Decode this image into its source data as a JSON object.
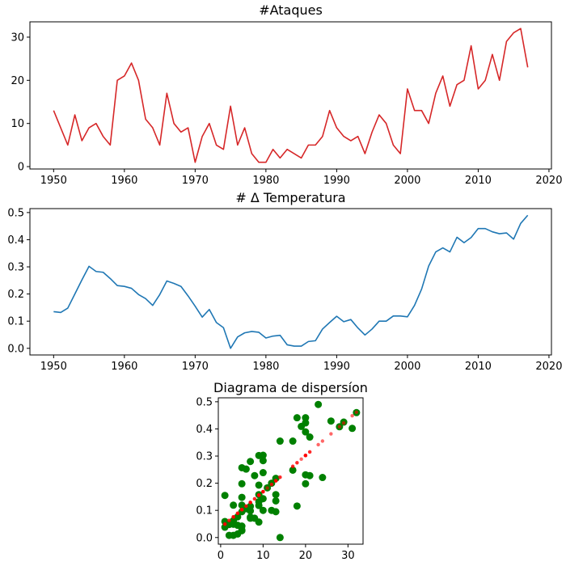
{
  "chart_data": [
    {
      "type": "line",
      "title": "#Ataques",
      "xlabel": "",
      "ylabel": "",
      "xlim": [
        1946.65,
        2020.35
      ],
      "ylim": [
        -0.55,
        33.55
      ],
      "xticks": [
        1950,
        1960,
        1970,
        1980,
        1990,
        2000,
        2010,
        2020
      ],
      "yticks": [
        0,
        10,
        20,
        30
      ],
      "grid": false,
      "series": [
        {
          "color": "#d62728",
          "x": [
            1950,
            1951,
            1952,
            1953,
            1954,
            1955,
            1956,
            1957,
            1958,
            1959,
            1960,
            1961,
            1962,
            1963,
            1964,
            1965,
            1966,
            1967,
            1968,
            1969,
            1970,
            1971,
            1972,
            1973,
            1974,
            1975,
            1976,
            1977,
            1978,
            1979,
            1980,
            1981,
            1982,
            1983,
            1984,
            1985,
            1986,
            1987,
            1988,
            1989,
            1990,
            1991,
            1992,
            1993,
            1994,
            1995,
            1996,
            1997,
            1998,
            1999,
            2000,
            2001,
            2002,
            2003,
            2004,
            2005,
            2006,
            2007,
            2008,
            2009,
            2010,
            2011,
            2012,
            2013,
            2014,
            2015,
            2016,
            2017
          ],
          "values": [
            13,
            9,
            5,
            12,
            6,
            9,
            10,
            7,
            5,
            20,
            21,
            24,
            20,
            11,
            9,
            5,
            17,
            10,
            8,
            9,
            1,
            7,
            10,
            5,
            4,
            14,
            5,
            9,
            3,
            1,
            1,
            4,
            2,
            4,
            3,
            2,
            5,
            5,
            7,
            13,
            9,
            7,
            6,
            7,
            3,
            8,
            12,
            10,
            5,
            3,
            18,
            13,
            13,
            10,
            17,
            21,
            14,
            19,
            20,
            28,
            18,
            20,
            26,
            20,
            29,
            31,
            32,
            23
          ]
        }
      ]
    },
    {
      "type": "line",
      "title": "# Δ Temperatura",
      "xlabel": "",
      "ylabel": "",
      "xlim": [
        1946.65,
        2020.35
      ],
      "ylim": [
        -0.0245,
        0.5145
      ],
      "xticks": [
        1950,
        1960,
        1970,
        1980,
        1990,
        2000,
        2010,
        2020
      ],
      "yticks": [
        0.0,
        0.1,
        0.2,
        0.3,
        0.4,
        0.5
      ],
      "ytick_labels": [
        "0.0",
        "0.1",
        "0.2",
        "0.3",
        "0.4",
        "0.5"
      ],
      "grid": false,
      "series": [
        {
          "color": "#1f77b4",
          "x": [
            1950,
            1951,
            1952,
            1953,
            1954,
            1955,
            1956,
            1957,
            1958,
            1959,
            1960,
            1961,
            1962,
            1963,
            1964,
            1965,
            1966,
            1967,
            1968,
            1969,
            1970,
            1971,
            1972,
            1973,
            1974,
            1975,
            1976,
            1977,
            1978,
            1979,
            1980,
            1981,
            1982,
            1983,
            1984,
            1985,
            1986,
            1987,
            1988,
            1989,
            1990,
            1991,
            1992,
            1993,
            1994,
            1995,
            1996,
            1997,
            1998,
            1999,
            2000,
            2001,
            2002,
            2003,
            2004,
            2005,
            2006,
            2007,
            2008,
            2009,
            2010,
            2011,
            2012,
            2013,
            2014,
            2015,
            2016,
            2017
          ],
          "values": [
            0.135,
            0.132,
            0.148,
            0.2,
            0.252,
            0.302,
            0.283,
            0.28,
            0.257,
            0.231,
            0.228,
            0.221,
            0.198,
            0.183,
            0.158,
            0.198,
            0.248,
            0.239,
            0.228,
            0.193,
            0.155,
            0.115,
            0.143,
            0.095,
            0.076,
            0.0,
            0.042,
            0.057,
            0.062,
            0.059,
            0.038,
            0.045,
            0.048,
            0.013,
            0.008,
            0.008,
            0.025,
            0.028,
            0.071,
            0.095,
            0.118,
            0.098,
            0.106,
            0.075,
            0.049,
            0.071,
            0.1,
            0.1,
            0.119,
            0.119,
            0.116,
            0.158,
            0.218,
            0.303,
            0.355,
            0.37,
            0.355,
            0.409,
            0.389,
            0.408,
            0.441,
            0.441,
            0.429,
            0.422,
            0.425,
            0.402,
            0.46,
            0.49
          ]
        }
      ]
    },
    {
      "type": "scatter",
      "title": "Diagrama de dispersíon",
      "xlabel": "",
      "ylabel": "",
      "xlim": [
        -0.55,
        33.55
      ],
      "ylim": [
        -0.0245,
        0.5145
      ],
      "xticks": [
        0,
        10,
        20,
        30
      ],
      "yticks": [
        0.0,
        0.1,
        0.2,
        0.3,
        0.4,
        0.5
      ],
      "ytick_labels": [
        "0.0",
        "0.1",
        "0.2",
        "0.3",
        "0.4",
        "0.5"
      ],
      "grid": false,
      "series": [
        {
          "color": "#008000",
          "marker": "large-dot",
          "points": [
            [
              13,
              0.135
            ],
            [
              9,
              0.132
            ],
            [
              5,
              0.148
            ],
            [
              12,
              0.2
            ],
            [
              6,
              0.252
            ],
            [
              9,
              0.302
            ],
            [
              10,
              0.283
            ],
            [
              7,
              0.28
            ],
            [
              5,
              0.257
            ],
            [
              20,
              0.231
            ],
            [
              21,
              0.228
            ],
            [
              24,
              0.221
            ],
            [
              20,
              0.198
            ],
            [
              11,
              0.183
            ],
            [
              9,
              0.158
            ],
            [
              5,
              0.198
            ],
            [
              17,
              0.248
            ],
            [
              10,
              0.239
            ],
            [
              8,
              0.228
            ],
            [
              9,
              0.193
            ],
            [
              1,
              0.155
            ],
            [
              7,
              0.115
            ],
            [
              10,
              0.143
            ],
            [
              5,
              0.095
            ],
            [
              4,
              0.076
            ],
            [
              14,
              0.0
            ],
            [
              5,
              0.042
            ],
            [
              9,
              0.057
            ],
            [
              3,
              0.062
            ],
            [
              1,
              0.059
            ],
            [
              1,
              0.038
            ],
            [
              4,
              0.045
            ],
            [
              2,
              0.048
            ],
            [
              4,
              0.013
            ],
            [
              3,
              0.008
            ],
            [
              2,
              0.008
            ],
            [
              5,
              0.025
            ],
            [
              5,
              0.028
            ],
            [
              7,
              0.071
            ],
            [
              13,
              0.095
            ],
            [
              9,
              0.118
            ],
            [
              7,
              0.098
            ],
            [
              6,
              0.106
            ],
            [
              7,
              0.075
            ],
            [
              3,
              0.049
            ],
            [
              8,
              0.071
            ],
            [
              12,
              0.1
            ],
            [
              10,
              0.1
            ],
            [
              5,
              0.119
            ],
            [
              3,
              0.119
            ],
            [
              18,
              0.116
            ],
            [
              13,
              0.158
            ],
            [
              13,
              0.218
            ],
            [
              10,
              0.303
            ],
            [
              17,
              0.355
            ],
            [
              21,
              0.37
            ],
            [
              14,
              0.355
            ],
            [
              19,
              0.409
            ],
            [
              20,
              0.389
            ],
            [
              28,
              0.408
            ],
            [
              18,
              0.441
            ],
            [
              20,
              0.441
            ],
            [
              26,
              0.429
            ],
            [
              20,
              0.422
            ],
            [
              29,
              0.425
            ],
            [
              31,
              0.402
            ],
            [
              32,
              0.46
            ],
            [
              23,
              0.49
            ]
          ]
        },
        {
          "color": "#ff0000",
          "marker": "small-dot",
          "regression": {
            "slope": 0.0133,
            "intercept": 0.036
          },
          "x": [
            13,
            9,
            5,
            12,
            6,
            9,
            10,
            7,
            5,
            20,
            21,
            24,
            20,
            11,
            9,
            5,
            17,
            10,
            8,
            9,
            1,
            7,
            10,
            5,
            4,
            14,
            5,
            9,
            3,
            1,
            1,
            4,
            2,
            4,
            3,
            2,
            5,
            5,
            7,
            13,
            9,
            7,
            6,
            7,
            3,
            8,
            12,
            10,
            5,
            3,
            18,
            13,
            13,
            10,
            17,
            21,
            14,
            19,
            20,
            28,
            18,
            20,
            26,
            20,
            29,
            31,
            32,
            23
          ]
        }
      ]
    }
  ]
}
